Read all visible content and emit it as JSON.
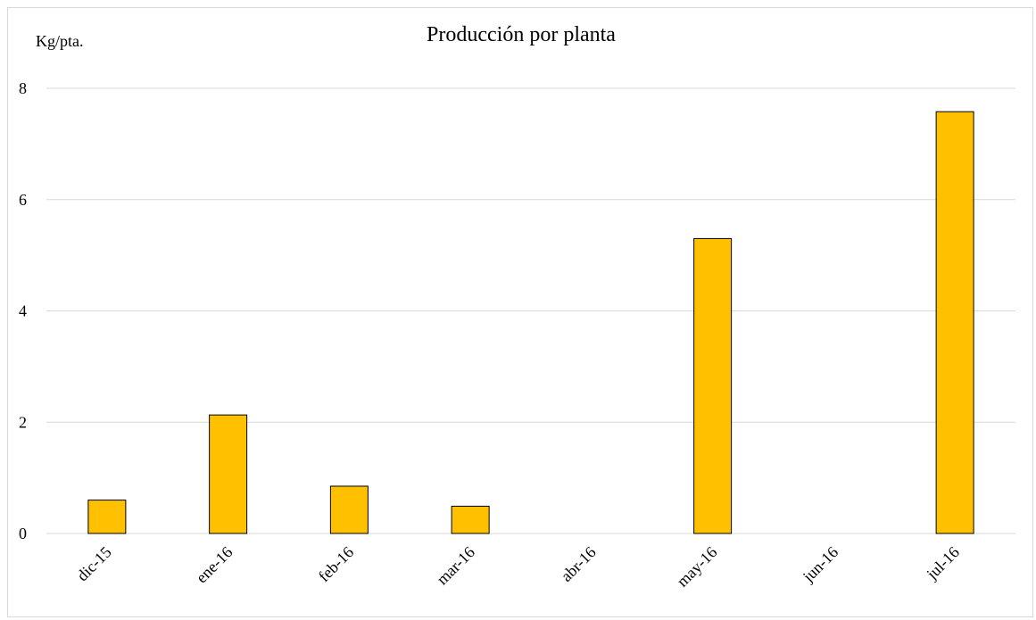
{
  "chart_data": {
    "type": "bar",
    "title": "Producción por planta",
    "ylabel": "Kg/pta.",
    "xlabel": "",
    "categories": [
      "dic-15",
      "ene-16",
      "feb-16",
      "mar-16",
      "abr-16",
      "may-16",
      "jun-16",
      "jul-16"
    ],
    "values": [
      0.6,
      2.13,
      0.85,
      0.49,
      0,
      5.3,
      0,
      7.58
    ],
    "ylim": [
      0,
      8
    ],
    "yticks": [
      0,
      2,
      4,
      6,
      8
    ],
    "grid": true,
    "legend": "none",
    "bar_color": "#FFC000",
    "bar_edge_color": "#000000"
  }
}
